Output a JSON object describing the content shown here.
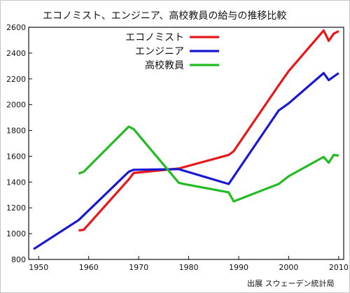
{
  "chart_data": {
    "type": "line",
    "title": "エコノミスト、エンジニア、高校教員の給与の推移比較",
    "source": "出展 スウェーデン統計局",
    "xlabel": "",
    "ylabel": "",
    "xlim": [
      1948,
      2011
    ],
    "ylim": [
      800,
      2600
    ],
    "xticks": [
      1950,
      1960,
      1970,
      1980,
      1990,
      2000,
      2010
    ],
    "yticks": [
      800,
      1000,
      1200,
      1400,
      1600,
      1800,
      2000,
      2200,
      2400,
      2600
    ],
    "grid": false,
    "legend_position": "top-center",
    "series": [
      {
        "name": "エコノミスト",
        "color": "#e8171a",
        "points": [
          [
            1958,
            1025
          ],
          [
            1959,
            1030
          ],
          [
            1968,
            1420
          ],
          [
            1969,
            1470
          ],
          [
            1978,
            1505
          ],
          [
            1988,
            1610
          ],
          [
            1989,
            1640
          ],
          [
            1998,
            2150
          ],
          [
            2000,
            2260
          ],
          [
            2007,
            2575
          ],
          [
            2008,
            2495
          ],
          [
            2009,
            2550
          ],
          [
            2010,
            2570
          ]
        ]
      },
      {
        "name": "エンジニア",
        "color": "#1818d0",
        "points": [
          [
            1949,
            880
          ],
          [
            1958,
            1105
          ],
          [
            1968,
            1480
          ],
          [
            1969,
            1495
          ],
          [
            1978,
            1500
          ],
          [
            1988,
            1385
          ],
          [
            1998,
            1955
          ],
          [
            2000,
            2010
          ],
          [
            2007,
            2245
          ],
          [
            2008,
            2190
          ],
          [
            2010,
            2245
          ]
        ]
      },
      {
        "name": "高校教員",
        "color": "#22bb22",
        "points": [
          [
            1958,
            1465
          ],
          [
            1959,
            1480
          ],
          [
            1968,
            1830
          ],
          [
            1969,
            1810
          ],
          [
            1978,
            1395
          ],
          [
            1979,
            1385
          ],
          [
            1988,
            1320
          ],
          [
            1989,
            1250
          ],
          [
            1998,
            1385
          ],
          [
            2000,
            1445
          ],
          [
            2007,
            1595
          ],
          [
            2008,
            1550
          ],
          [
            2009,
            1610
          ],
          [
            2010,
            1605
          ]
        ]
      }
    ]
  }
}
